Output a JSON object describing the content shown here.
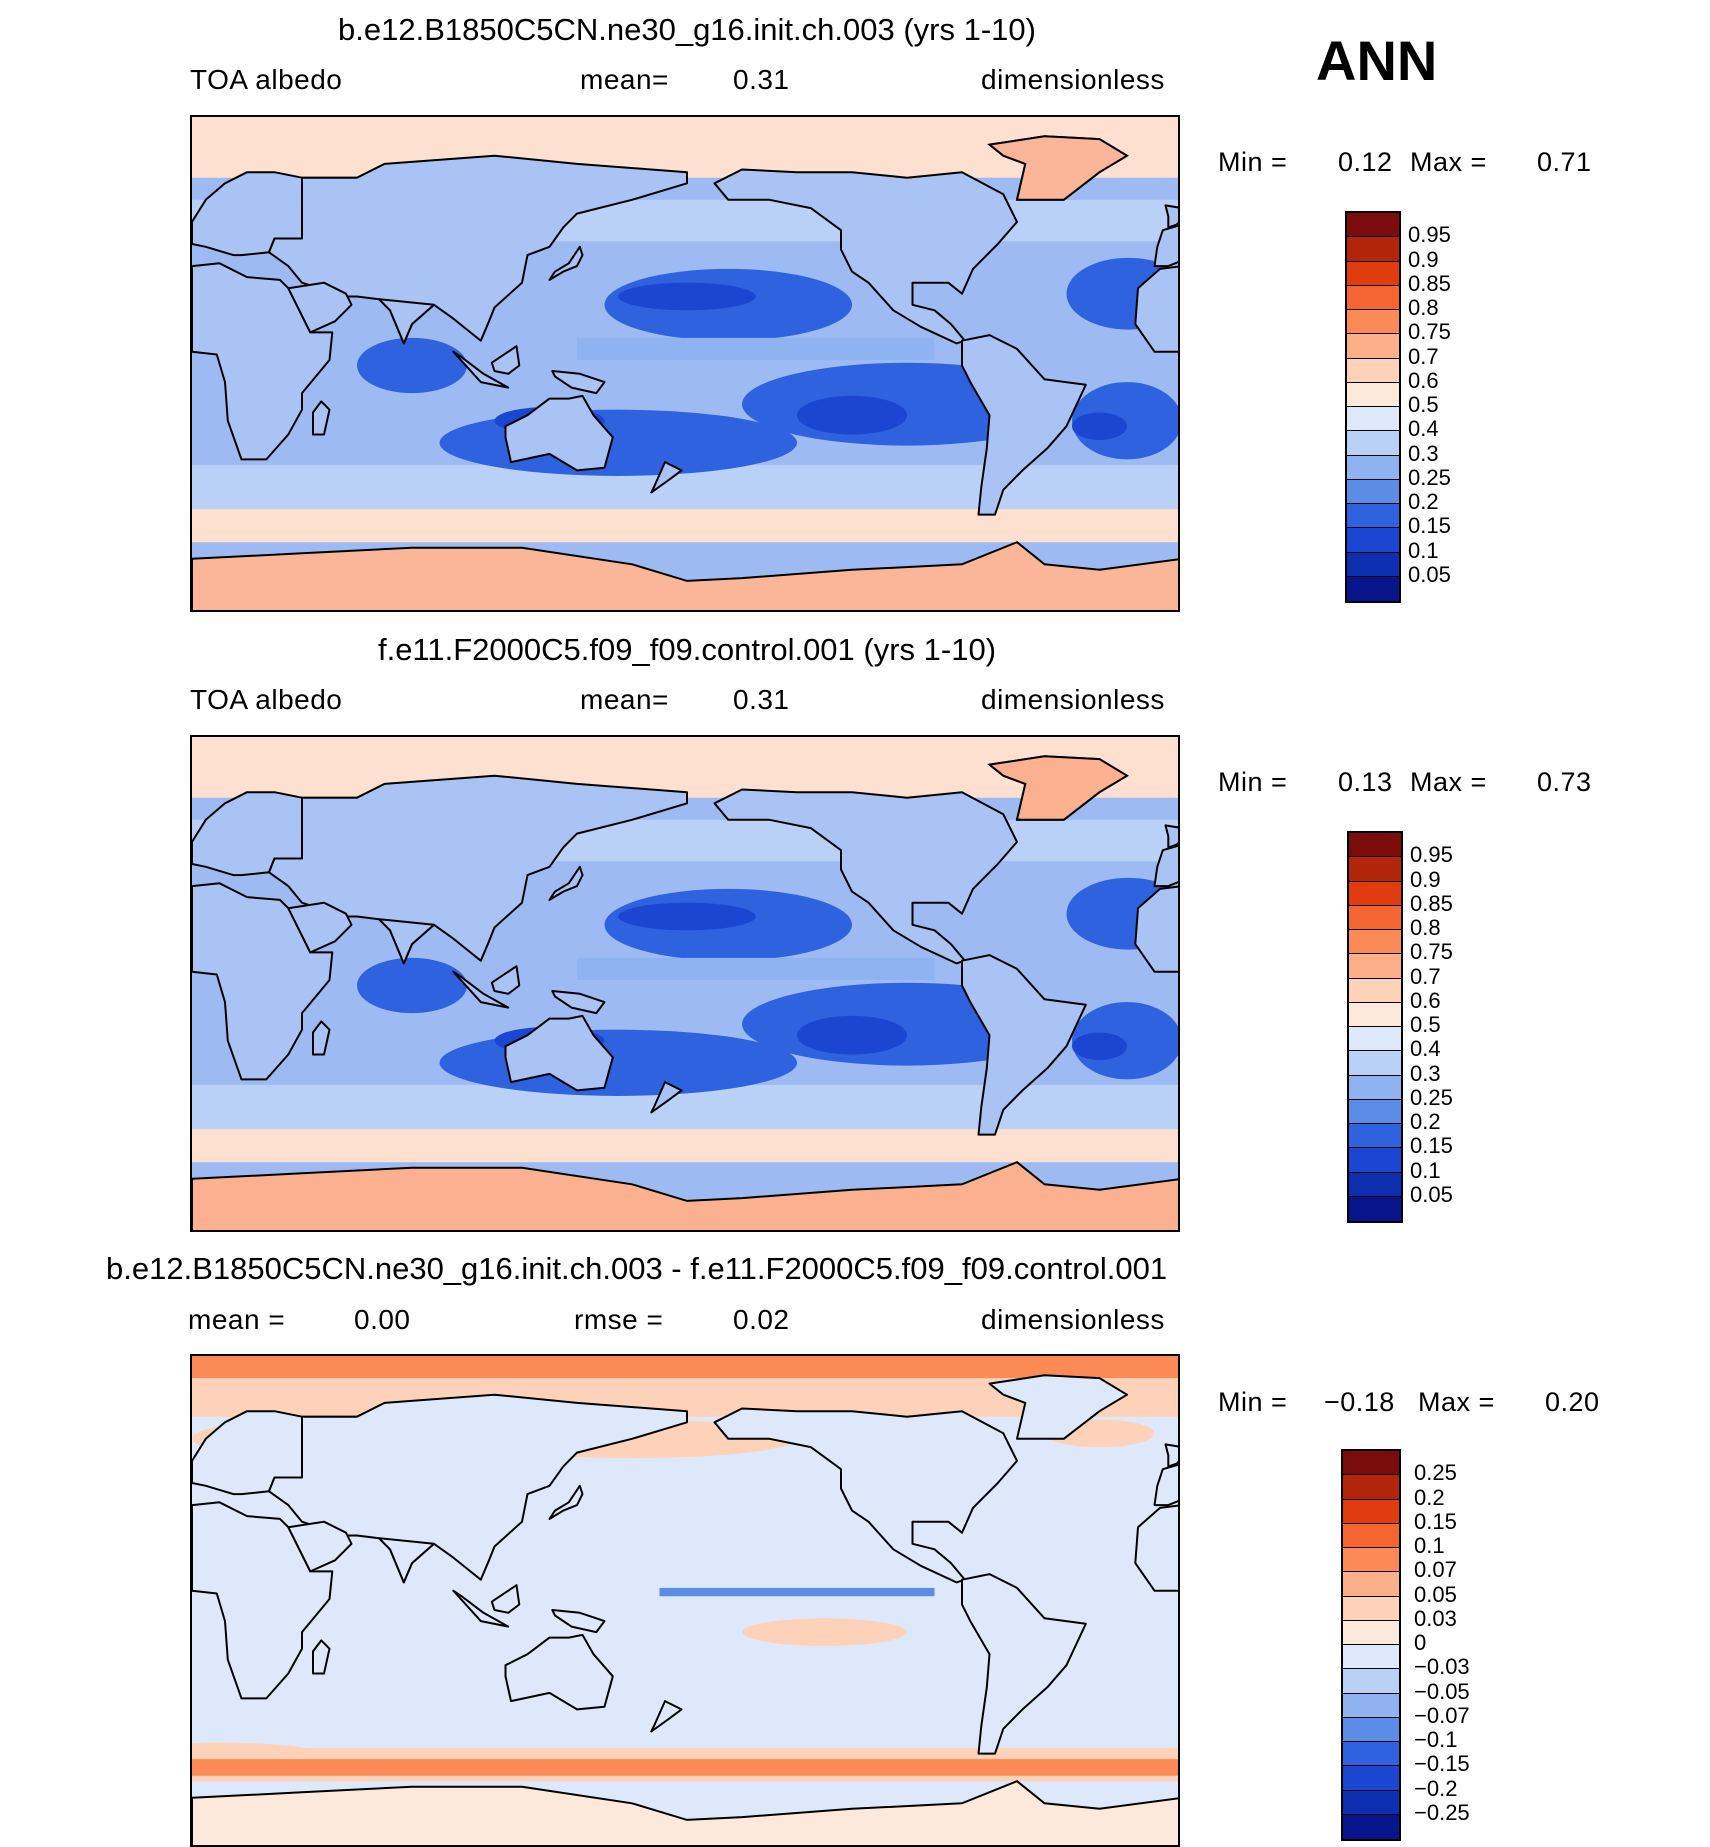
{
  "season": "ANN",
  "panels": [
    {
      "id": "case",
      "title": "b.e12.B1850C5CN.ne30_g16.init.ch.003 (yrs 1-10)",
      "left_text": "TOA albedo",
      "mid_label": "mean=",
      "mid_value": "0.31",
      "units": "dimensionless",
      "min_label": "Min =",
      "min_value": "0.12",
      "max_label": "Max =",
      "max_value": "0.71",
      "colorbar": {
        "labels": [
          "0.95",
          "0.9",
          "0.85",
          "0.8",
          "0.75",
          "0.7",
          "0.6",
          "0.5",
          "0.4",
          "0.3",
          "0.25",
          "0.2",
          "0.15",
          "0.1",
          "0.05"
        ],
        "colors": [
          "#7a0c0c",
          "#b22508",
          "#e03c10",
          "#f56531",
          "#fb8a56",
          "#fcaf89",
          "#fdd2b9",
          "#fde9dc",
          "#dde9fb",
          "#b9d1f7",
          "#8fb2f0",
          "#5b8ce6",
          "#2f62df",
          "#1a46d2",
          "#0e2eb0",
          "#07148c"
        ]
      },
      "map_colors": {
        "ocean": "#9dbbf2",
        "land": "#a9c4f4",
        "polar": "#fbb699",
        "subpolar": "#fde0cf",
        "dark": "#2f62df",
        "darkest": "#1a46d2"
      }
    },
    {
      "id": "control",
      "title": "f.e11.F2000C5.f09_f09.control.001 (yrs 1-10)",
      "left_text": "TOA albedo",
      "mid_label": "mean=",
      "mid_value": "0.31",
      "units": "dimensionless",
      "min_label": "Min =",
      "min_value": "0.13",
      "max_label": "Max =",
      "max_value": "0.73",
      "colorbar": {
        "labels": [
          "0.95",
          "0.9",
          "0.85",
          "0.8",
          "0.75",
          "0.7",
          "0.6",
          "0.5",
          "0.4",
          "0.3",
          "0.25",
          "0.2",
          "0.15",
          "0.1",
          "0.05"
        ],
        "colors": [
          "#7a0c0c",
          "#b22508",
          "#e03c10",
          "#f56531",
          "#fb8a56",
          "#fcaf89",
          "#fdd2b9",
          "#fde9dc",
          "#dde9fb",
          "#b9d1f7",
          "#8fb2f0",
          "#5b8ce6",
          "#2f62df",
          "#1a46d2",
          "#0e2eb0",
          "#07148c"
        ]
      },
      "map_colors": {
        "ocean": "#9dbbf2",
        "land": "#a9c4f4",
        "polar": "#fbb08f",
        "subpolar": "#fde0cf",
        "dark": "#2f62df",
        "darkest": "#1a46d2"
      }
    },
    {
      "id": "diff",
      "title": "b.e12.B1850C5CN.ne30_g16.init.ch.003 - f.e11.F2000C5.f09_f09.control.001",
      "left_label": "mean =",
      "left_value": "0.00",
      "mid_label": "rmse =",
      "mid_value": "0.02",
      "units": "dimensionless",
      "min_label": "Min =",
      "min_value": "−0.18",
      "max_label": "Max =",
      "max_value": "0.20",
      "colorbar": {
        "labels": [
          "0.25",
          "0.2",
          "0.15",
          "0.1",
          "0.07",
          "0.05",
          "0.03",
          "0",
          "−0.03",
          "−0.05",
          "−0.07",
          "−0.1",
          "−0.15",
          "−0.2",
          "−0.25"
        ],
        "colors": [
          "#7a0c0c",
          "#b22508",
          "#e03c10",
          "#f56531",
          "#fb8a56",
          "#fcaf89",
          "#fdd2b9",
          "#fde9dc",
          "#dde9fb",
          "#b9d1f7",
          "#8fb2f0",
          "#5b8ce6",
          "#2f62df",
          "#1a46d2",
          "#0e2eb0",
          "#07148c"
        ]
      },
      "map_colors": {
        "ocean": "#dde9fb",
        "land": "#dde9fb",
        "polar": "#fde9dc",
        "subpolar": "#fdd2b9",
        "dark": "#e03c10",
        "darkest": "#fb8a56"
      }
    }
  ]
}
